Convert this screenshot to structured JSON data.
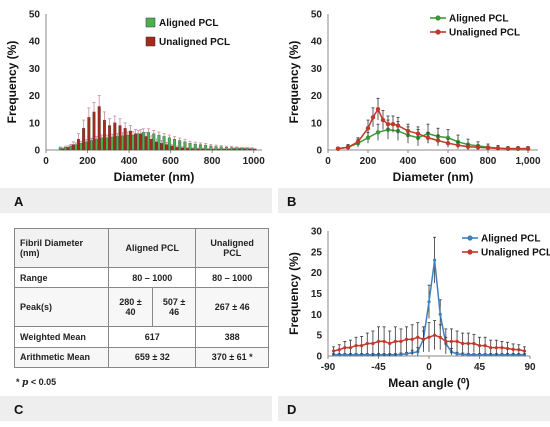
{
  "chart_data": [
    {
      "panel": "A",
      "type": "bar",
      "xlabel": "Diameter (nm)",
      "ylabel": "Frequency (%)",
      "ylim": [
        0,
        50
      ],
      "yticks": [
        0,
        10,
        20,
        30,
        40,
        50
      ],
      "xticks": [
        0,
        200,
        400,
        600,
        800,
        1000
      ],
      "xlim": [
        0,
        1040
      ],
      "bin_width": 25,
      "legend_position": "top-center",
      "series": [
        {
          "name": "Aligned PCL",
          "color": "#4caf50",
          "x": [
            75,
            100,
            125,
            150,
            175,
            200,
            225,
            250,
            275,
            300,
            325,
            350,
            375,
            400,
            425,
            450,
            475,
            500,
            525,
            550,
            575,
            600,
            625,
            650,
            675,
            700,
            725,
            750,
            775,
            800,
            825,
            850,
            875,
            900,
            925,
            950,
            975,
            1000
          ],
          "values": [
            0.8,
            1,
            1.5,
            2,
            2.5,
            3,
            3.5,
            4,
            4.5,
            4.5,
            4.8,
            5,
            5.2,
            5.5,
            5.5,
            6,
            6.5,
            6.5,
            6,
            5.5,
            5,
            4.5,
            4,
            3.5,
            3,
            2.5,
            2.2,
            2,
            1.8,
            1.5,
            1.3,
            1.2,
            1,
            0.9,
            0.8,
            0.7,
            0.6,
            0.5
          ],
          "errors": [
            0.3,
            0.4,
            0.5,
            0.6,
            0.7,
            0.8,
            0.8,
            0.9,
            1,
            1,
            1,
            1,
            1.1,
            1.1,
            1.2,
            1.2,
            1.3,
            1.3,
            1.2,
            1.1,
            1,
            1,
            0.9,
            0.9,
            0.8,
            0.7,
            0.7,
            0.6,
            0.6,
            0.5,
            0.5,
            0.4,
            0.4,
            0.4,
            0.3,
            0.3,
            0.3,
            0.3
          ]
        },
        {
          "name": "Unaligned PCL",
          "color": "#a52a1a",
          "x": [
            75,
            100,
            125,
            150,
            175,
            200,
            225,
            250,
            275,
            300,
            325,
            350,
            375,
            400,
            425,
            450,
            475,
            500,
            525,
            550,
            575,
            600,
            625,
            650,
            675,
            700,
            725,
            750,
            775,
            800,
            825,
            850,
            875,
            900,
            925,
            950,
            975,
            1000
          ],
          "values": [
            0.5,
            1,
            2,
            4,
            8,
            12,
            14,
            16,
            11,
            9,
            10,
            9,
            8,
            7,
            6,
            6,
            5,
            4,
            3,
            2.5,
            2,
            1.5,
            1,
            0.8,
            0.6,
            0.5,
            0.4,
            0.4,
            0.3,
            0.3,
            0.3,
            0.3,
            0.3,
            0.5,
            0.5,
            0.5,
            0.4,
            0.3
          ],
          "errors": [
            0.3,
            0.5,
            1,
            2,
            3,
            3.5,
            3.5,
            4,
            3,
            2.5,
            2.5,
            2.5,
            2,
            2,
            1.5,
            1.5,
            1.5,
            1.2,
            1,
            1,
            0.8,
            0.6,
            0.5,
            0.4,
            0.3,
            0.3,
            0.3,
            0.3,
            0.2,
            0.2,
            0.2,
            0.2,
            0.2,
            0.3,
            0.3,
            0.3,
            0.3,
            0.2
          ]
        }
      ]
    },
    {
      "panel": "B",
      "type": "line",
      "xlabel": "Diameter (nm)",
      "ylabel": "Frequency (%)",
      "ylim": [
        0,
        50
      ],
      "yticks": [
        0,
        10,
        20,
        30,
        40,
        50
      ],
      "xticks": [
        0,
        200,
        400,
        600,
        800,
        1000
      ],
      "xticklabels": [
        "0",
        "200",
        "400",
        "600",
        "800",
        "1,000"
      ],
      "xlim": [
        0,
        1050
      ],
      "legend_position": "top-center",
      "series": [
        {
          "name": "Aligned PCL",
          "color": "#3a9a3a",
          "x": [
            50,
            100,
            150,
            200,
            250,
            300,
            350,
            400,
            450,
            500,
            550,
            600,
            650,
            700,
            750,
            800,
            850,
            900,
            950,
            1000
          ],
          "values": [
            0.5,
            1,
            2.5,
            4.5,
            6.5,
            7.5,
            7,
            5.5,
            4.5,
            6,
            5,
            4.5,
            3,
            2,
            1.5,
            1,
            0.7,
            0.5,
            0.5,
            0.5
          ],
          "errors": [
            0.5,
            1,
            1.5,
            2,
            3,
            3.5,
            3.5,
            3,
            3,
            3.5,
            3,
            3,
            2.5,
            2,
            1.5,
            1.2,
            1,
            0.8,
            0.8,
            0.8
          ]
        },
        {
          "name": "Unaligned PCL",
          "color": "#c0392b",
          "x": [
            50,
            100,
            150,
            200,
            225,
            250,
            275,
            300,
            325,
            350,
            400,
            450,
            500,
            550,
            600,
            650,
            700,
            750,
            800,
            850,
            900,
            950,
            1000
          ],
          "values": [
            0.5,
            1,
            3,
            8,
            12,
            15,
            11,
            9.5,
            9.5,
            9,
            7,
            6,
            4.5,
            3.5,
            2.5,
            1.8,
            1.2,
            1,
            0.8,
            0.6,
            0.5,
            0.5,
            0.5
          ],
          "errors": [
            0.5,
            0.8,
            1.5,
            3,
            3.5,
            4,
            3.5,
            3,
            3,
            3,
            2.5,
            2.5,
            2,
            2,
            1.5,
            1.2,
            1,
            0.8,
            0.6,
            0.5,
            0.5,
            0.5,
            0.5
          ]
        }
      ]
    },
    {
      "panel": "D",
      "type": "line",
      "xlabel": "Mean angle (⁰)",
      "ylabel": "Frequency (%)",
      "ylim": [
        0,
        30
      ],
      "yticks": [
        0,
        5,
        10,
        15,
        20,
        25,
        30
      ],
      "xticks": [
        -90,
        -45,
        0,
        45,
        90
      ],
      "xlim": [
        -90,
        90
      ],
      "legend_position": "top-right",
      "series": [
        {
          "name": "Aligned PCL",
          "color": "#3f7fbf",
          "x": [
            -85,
            -80,
            -75,
            -70,
            -65,
            -60,
            -55,
            -50,
            -45,
            -40,
            -35,
            -30,
            -25,
            -20,
            -15,
            -10,
            -5,
            0,
            5,
            10,
            15,
            20,
            25,
            30,
            35,
            40,
            45,
            50,
            55,
            60,
            65,
            70,
            75,
            80,
            85
          ],
          "values": [
            0.3,
            0.3,
            0.3,
            0.3,
            0.3,
            0.3,
            0.3,
            0.3,
            0.3,
            0.3,
            0.3,
            0.3,
            0.4,
            0.5,
            0.8,
            1,
            4,
            13,
            23,
            10,
            3,
            1,
            0.5,
            0.4,
            0.3,
            0.3,
            0.3,
            0.3,
            0.3,
            0.3,
            0.3,
            0.3,
            0.3,
            0.3,
            0.3
          ],
          "errors": [
            0.3,
            0.3,
            0.3,
            0.3,
            0.3,
            0.3,
            0.3,
            0.3,
            0.3,
            0.3,
            0.3,
            0.3,
            0.3,
            0.4,
            0.6,
            1,
            2,
            4,
            5.5,
            3.5,
            1.5,
            0.8,
            0.4,
            0.3,
            0.3,
            0.3,
            0.3,
            0.3,
            0.3,
            0.3,
            0.3,
            0.3,
            0.3,
            0.3,
            0.3
          ]
        },
        {
          "name": "Unaligned PCL",
          "color": "#c0392b",
          "x": [
            -85,
            -80,
            -75,
            -70,
            -65,
            -60,
            -55,
            -50,
            -45,
            -40,
            -35,
            -30,
            -25,
            -20,
            -15,
            -10,
            -5,
            0,
            5,
            10,
            15,
            20,
            25,
            30,
            35,
            40,
            45,
            50,
            55,
            60,
            65,
            70,
            75,
            80,
            85
          ],
          "values": [
            1.2,
            1.5,
            2,
            2,
            2.5,
            2.5,
            3,
            3,
            3.5,
            3.5,
            3,
            3.5,
            3.5,
            4,
            4,
            4.5,
            4,
            4.5,
            5,
            4.5,
            3.5,
            3.5,
            3.5,
            3,
            3,
            3,
            2.5,
            2.5,
            2,
            2,
            2,
            1.8,
            1.6,
            1.5,
            1.2
          ],
          "errors": [
            1,
            1.2,
            1.5,
            1.8,
            2,
            2.2,
            2.5,
            3,
            3.5,
            3.5,
            3,
            3.5,
            3,
            3,
            3.5,
            3.5,
            3,
            3.5,
            3.5,
            3,
            3,
            3,
            2.5,
            2.5,
            2.5,
            2.2,
            2,
            2,
            1.8,
            1.8,
            1.5,
            1.5,
            1.3,
            1.2,
            1
          ]
        }
      ]
    },
    {
      "panel": "C",
      "type": "table",
      "header": [
        "Fibril Diameter (nm)",
        "Aligned PCL",
        "Unaligned PCL"
      ],
      "rows": [
        {
          "label": "Range",
          "aligned": "80 – 1000",
          "unaligned": "80 – 1000"
        },
        {
          "label": "Peak(s)",
          "aligned_1": "280 ± 40",
          "aligned_2": "507 ± 46",
          "unaligned": "267 ± 46"
        },
        {
          "label": "Weighted Mean",
          "aligned": "617",
          "unaligned": "388"
        },
        {
          "label": "Arithmetic Mean",
          "aligned": "659 ± 32",
          "unaligned": "370 ± 61 *"
        }
      ],
      "footnote_prefix": "* ",
      "footnote_p": "p",
      "footnote_rest": " < 0.05"
    }
  ],
  "panel_labels": {
    "a": "A",
    "b": "B",
    "c": "C",
    "d": "D"
  }
}
